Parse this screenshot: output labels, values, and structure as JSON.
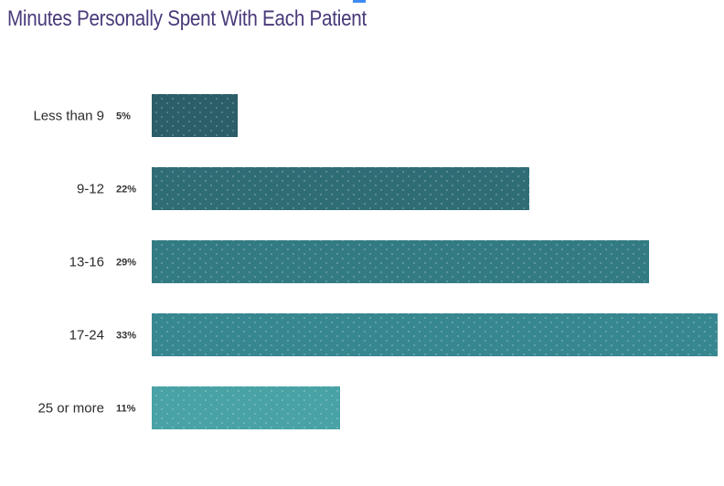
{
  "title": "Minutes Personally Spent With Each Patient",
  "colors": {
    "title": "#4a3a7a",
    "bars": [
      "#2b5e68",
      "#2f6d75",
      "#337b83",
      "#378791",
      "#48a2a6"
    ]
  },
  "chart_data": {
    "type": "bar",
    "orientation": "horizontal",
    "title": "Minutes Personally Spent With Each Patient",
    "xlabel": "",
    "ylabel": "",
    "categories": [
      "Less than 9",
      "9-12",
      "13-16",
      "17-24",
      "25 or more"
    ],
    "values": [
      5,
      22,
      29,
      33,
      11
    ],
    "value_labels": [
      "5%",
      "22%",
      "29%",
      "33%",
      "11%"
    ],
    "xlim": [
      0,
      33
    ],
    "grid": false,
    "legend": "none"
  }
}
